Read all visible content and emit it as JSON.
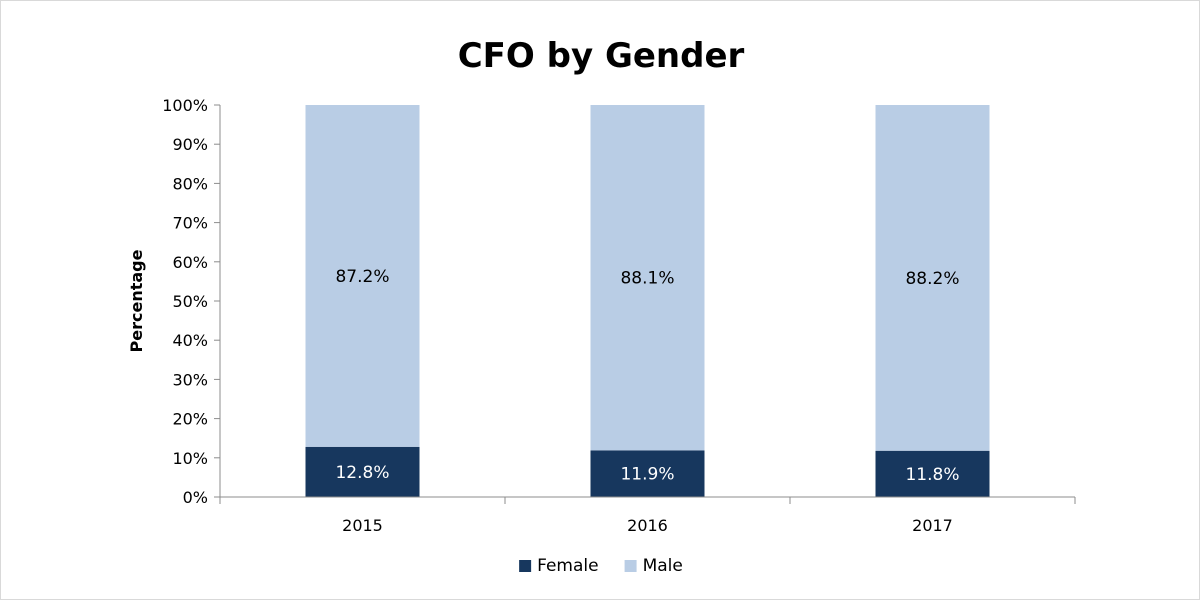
{
  "chart_data": {
    "type": "bar",
    "stacked": true,
    "title": "CFO by Gender",
    "xlabel": "",
    "ylabel": "Percentage",
    "categories": [
      "2015",
      "2016",
      "2017"
    ],
    "ylim": [
      0,
      100
    ],
    "yticks": [
      "0%",
      "10%",
      "20%",
      "30%",
      "40%",
      "50%",
      "60%",
      "70%",
      "80%",
      "90%",
      "100%"
    ],
    "series": [
      {
        "name": "Female",
        "values": [
          12.8,
          11.9,
          11.8
        ],
        "labels": [
          "12.8%",
          "11.9%",
          "11.8%"
        ],
        "color": "#17375e",
        "label_color": "#ffffff"
      },
      {
        "name": "Male",
        "values": [
          87.2,
          88.1,
          88.2
        ],
        "labels": [
          "87.2%",
          "88.1%",
          "88.2%"
        ],
        "color": "#b9cde5",
        "label_color": "#000000"
      }
    ],
    "grid": false,
    "legend": "bottom"
  }
}
